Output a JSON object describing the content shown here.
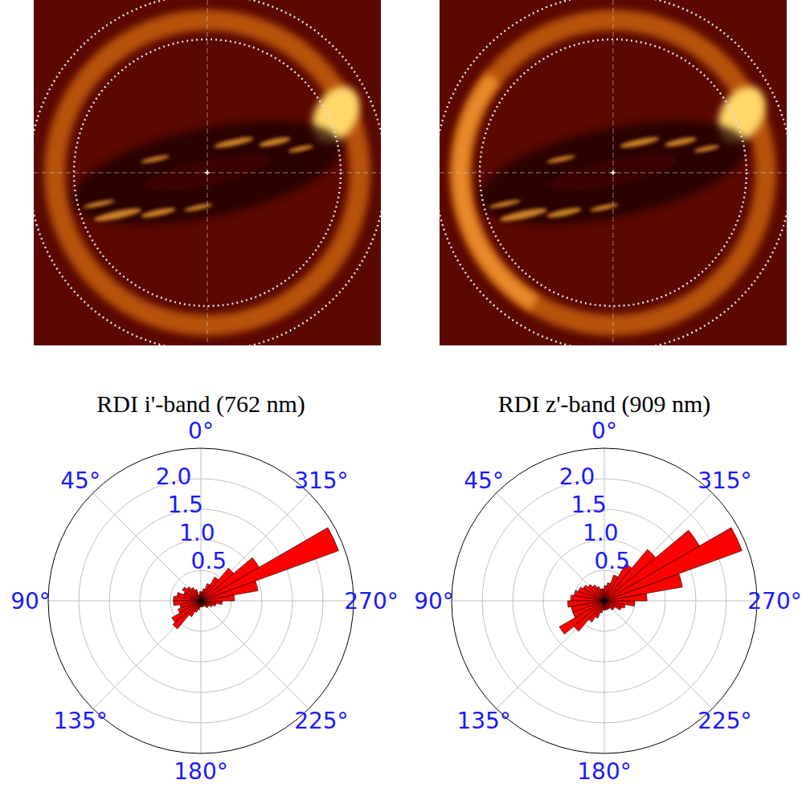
{
  "chart_data": [
    {
      "type": "polar",
      "title": "RDI i'-band (762 nm)",
      "color": "#ff0000",
      "grid": true,
      "xlim": [
        0,
        360
      ],
      "ylim": [
        0,
        2.5
      ],
      "xticks": [
        {
          "value": 0,
          "label": "0°"
        },
        {
          "value": 45,
          "label": "45°"
        },
        {
          "value": 90,
          "label": "90°"
        },
        {
          "value": 135,
          "label": "135°"
        },
        {
          "value": 180,
          "label": "180°"
        },
        {
          "value": 225,
          "label": "225°"
        },
        {
          "value": 270,
          "label": "270°"
        },
        {
          "value": 315,
          "label": "315°"
        }
      ],
      "yticks": [
        0.5,
        {
          "value": 1,
          "label": "1.0"
        },
        1.5,
        {
          "value": 2,
          "label": "2.0"
        }
      ],
      "bins": [
        0,
        10,
        20,
        30,
        40,
        50,
        60,
        70,
        80,
        90,
        100,
        110,
        120,
        130,
        140,
        150,
        160,
        170,
        180,
        190,
        200,
        210,
        220,
        230,
        240,
        250,
        260,
        270,
        280,
        290,
        300,
        310,
        320,
        330,
        340,
        350,
        360
      ],
      "values": [
        0.15,
        0.1,
        0.2,
        0.25,
        0.3,
        0.35,
        0.3,
        0.4,
        0.45,
        0.45,
        0.35,
        0.4,
        0.55,
        0.6,
        0.3,
        0.2,
        0.15,
        0.1,
        0.1,
        0.1,
        0.1,
        0.1,
        0.15,
        0.15,
        0.2,
        0.25,
        0.35,
        0.55,
        0.95,
        2.4,
        1.1,
        0.7,
        0.45,
        0.3,
        0.2,
        0.15
      ]
    },
    {
      "type": "polar",
      "title": "RDI z'-band (909 nm)",
      "color": "#ff0000",
      "grid": true,
      "xlim": [
        0,
        360
      ],
      "ylim": [
        0,
        2.5
      ],
      "xticks": [
        {
          "value": 0,
          "label": "0°"
        },
        {
          "value": 45,
          "label": "45°"
        },
        {
          "value": 90,
          "label": "90°"
        },
        {
          "value": 135,
          "label": "135°"
        },
        {
          "value": 180,
          "label": "180°"
        },
        {
          "value": 225,
          "label": "225°"
        },
        {
          "value": 270,
          "label": "270°"
        },
        {
          "value": 315,
          "label": "315°"
        }
      ],
      "yticks": [
        0.5,
        {
          "value": 1,
          "label": "1.0"
        },
        1.5,
        {
          "value": 2,
          "label": "2.0"
        }
      ],
      "bins": [
        0,
        10,
        20,
        30,
        40,
        50,
        60,
        70,
        80,
        90,
        100,
        110,
        120,
        130,
        140,
        150,
        160,
        170,
        180,
        190,
        200,
        210,
        220,
        230,
        240,
        250,
        260,
        270,
        280,
        290,
        300,
        310,
        320,
        330,
        340,
        350,
        360
      ],
      "values": [
        0.2,
        0.2,
        0.25,
        0.3,
        0.35,
        0.4,
        0.45,
        0.5,
        0.55,
        0.6,
        0.55,
        0.55,
        0.85,
        0.65,
        0.4,
        0.3,
        0.2,
        0.15,
        0.15,
        0.15,
        0.15,
        0.15,
        0.2,
        0.2,
        0.3,
        0.35,
        0.5,
        0.7,
        1.3,
        2.4,
        1.8,
        1.1,
        0.7,
        0.45,
        0.3,
        0.25
      ]
    }
  ]
}
